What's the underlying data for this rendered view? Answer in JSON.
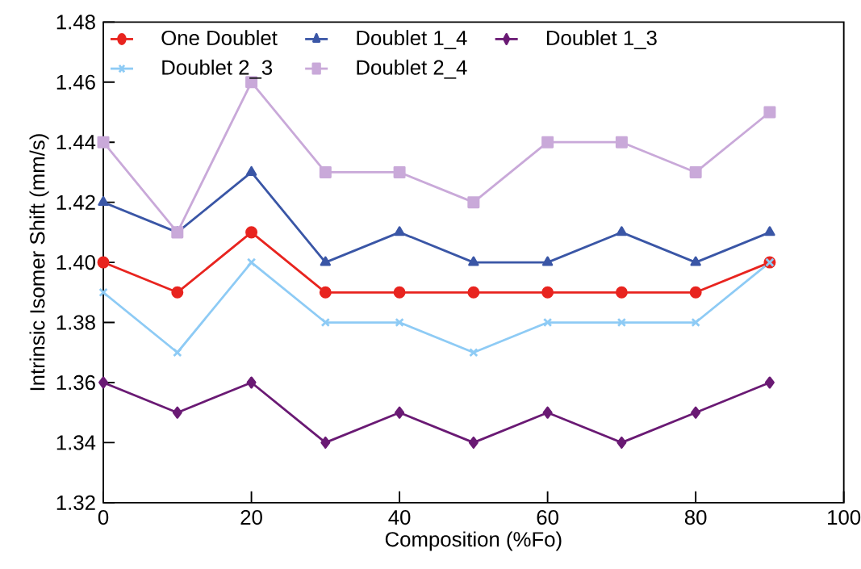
{
  "chart_data": {
    "type": "line",
    "xlabel": "Composition (%Fo)",
    "ylabel": "Intrinsic Isomer Shift (mm/s)",
    "x": [
      0,
      10,
      20,
      30,
      40,
      50,
      60,
      70,
      80,
      90
    ],
    "series": [
      {
        "name": "One Doublet",
        "color": "#e8241f",
        "marker": "circle",
        "values": [
          1.4,
          1.39,
          1.41,
          1.39,
          1.39,
          1.39,
          1.39,
          1.39,
          1.39,
          1.4
        ]
      },
      {
        "name": "Doublet 1_4",
        "color": "#3a56a6",
        "marker": "triangle",
        "values": [
          1.42,
          1.41,
          1.43,
          1.4,
          1.41,
          1.4,
          1.4,
          1.41,
          1.4,
          1.41
        ]
      },
      {
        "name": "Doublet 1_3",
        "color": "#6a1a74",
        "marker": "diamond",
        "values": [
          1.36,
          1.35,
          1.36,
          1.34,
          1.35,
          1.34,
          1.35,
          1.34,
          1.35,
          1.36
        ]
      },
      {
        "name": "Doublet 2_3",
        "color": "#8ecbf5",
        "marker": "cross",
        "values": [
          1.39,
          1.37,
          1.4,
          1.38,
          1.38,
          1.37,
          1.38,
          1.38,
          1.38,
          1.4
        ]
      },
      {
        "name": "Doublet 2_4",
        "color": "#c9a9d9",
        "marker": "square",
        "values": [
          1.44,
          1.41,
          1.46,
          1.43,
          1.43,
          1.42,
          1.44,
          1.44,
          1.43,
          1.45
        ]
      }
    ],
    "xlim": [
      0,
      100
    ],
    "xticks": [
      0,
      20,
      40,
      60,
      80,
      100
    ],
    "ylim": [
      1.32,
      1.48
    ],
    "yticks": [
      1.32,
      1.34,
      1.36,
      1.38,
      {
        "value": 1.4,
        "label": "1.40"
      },
      1.42,
      1.44,
      1.46,
      1.48
    ],
    "legend": "top left",
    "grid": false,
    "line_style": "solid"
  }
}
